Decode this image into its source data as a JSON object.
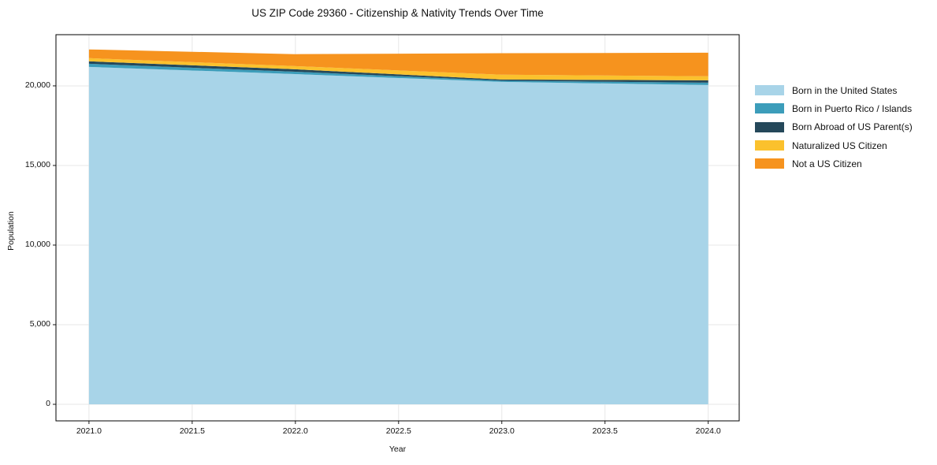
{
  "title": "US ZIP Code 29360 - Citizenship & Nativity Trends Over Time",
  "axes": {
    "xlabel": "Year",
    "ylabel": "Population",
    "x_tick_labels": [
      "2021.0",
      "2021.5",
      "2022.0",
      "2022.5",
      "2023.0",
      "2023.5",
      "2024.0"
    ],
    "x_tick_values": [
      2021.0,
      2021.5,
      2022.0,
      2022.5,
      2023.0,
      2023.5,
      2024.0
    ],
    "y_tick_labels": [
      "0",
      "5,000",
      "10,000",
      "15,000",
      "20,000"
    ],
    "y_tick_values": [
      0,
      5000,
      10000,
      15000,
      20000
    ]
  },
  "chart_data": {
    "type": "area",
    "stacked": true,
    "title": "US ZIP Code 29360 - Citizenship & Nativity Trends Over Time",
    "xlabel": "Year",
    "ylabel": "Population",
    "x": [
      2021,
      2022,
      2023,
      2024
    ],
    "series": [
      {
        "name": "Born in the United States",
        "color": "#A8D4E8",
        "values": [
          21190,
          20740,
          20250,
          20050
        ]
      },
      {
        "name": "Born in Puerto Rico / Islands",
        "color": "#3C9DBA",
        "values": [
          200,
          150,
          75,
          150
        ]
      },
      {
        "name": "Born Abroad of US Parent(s)",
        "color": "#25485A",
        "values": [
          150,
          150,
          75,
          150
        ]
      },
      {
        "name": "Naturalized US Citizen",
        "color": "#FBC12D",
        "values": [
          200,
          200,
          300,
          250
        ]
      },
      {
        "name": "Not a US Citizen",
        "color": "#F6931E",
        "values": [
          550,
          750,
          1350,
          1480
        ]
      }
    ],
    "xlim": [
      2020.84,
      2024.15
    ],
    "ylim": [
      -1040,
      23215
    ],
    "grid": true,
    "gridcolor": "#E7E7E7",
    "legend_position": "right outside"
  }
}
